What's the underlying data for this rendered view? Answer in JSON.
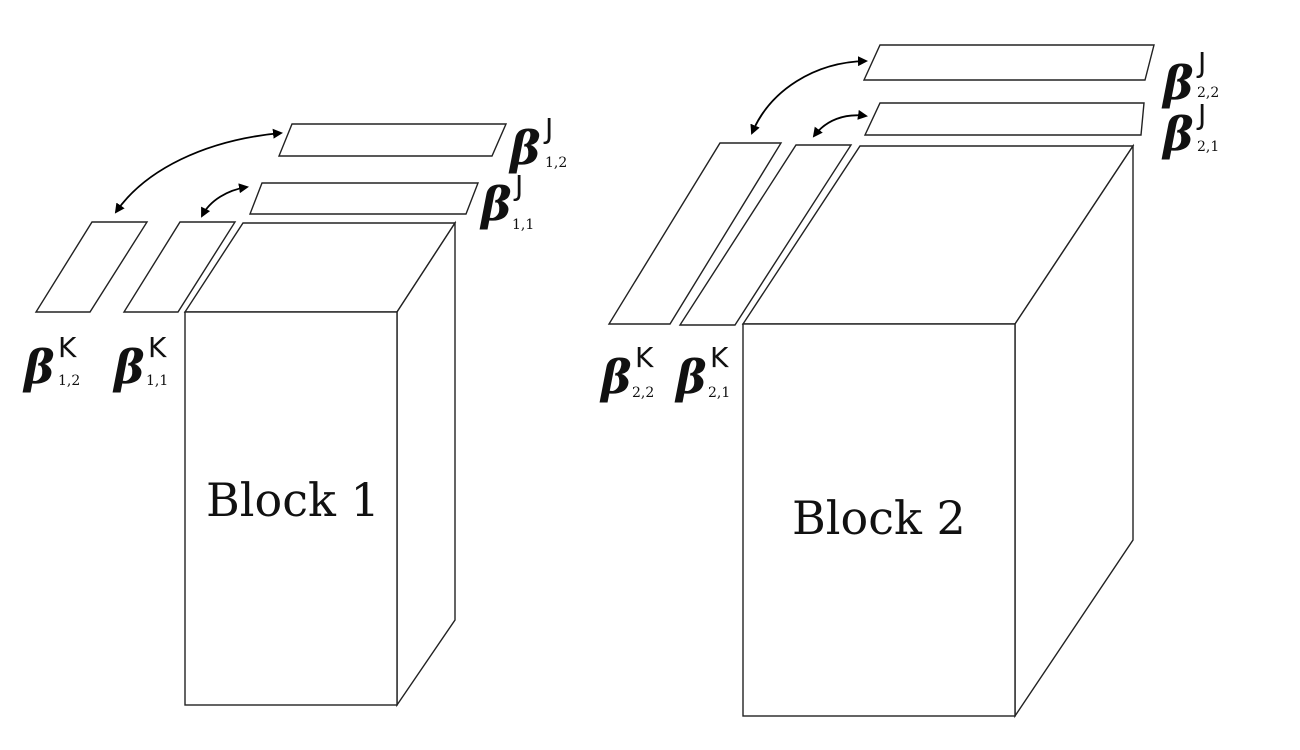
{
  "blocks": [
    {
      "label": "Block 1",
      "beta_j": [
        {
          "symbol": "β",
          "sup": "J",
          "sub": "1,2"
        },
        {
          "symbol": "β",
          "sup": "J",
          "sub": "1,1"
        }
      ],
      "beta_k": [
        {
          "symbol": "β",
          "sup": "K",
          "sub": "1,2"
        },
        {
          "symbol": "β",
          "sup": "K",
          "sub": "1,1"
        }
      ]
    },
    {
      "label": "Block 2",
      "beta_j": [
        {
          "symbol": "β",
          "sup": "J",
          "sub": "2,2"
        },
        {
          "symbol": "β",
          "sup": "J",
          "sub": "2,1"
        }
      ],
      "beta_k": [
        {
          "symbol": "β",
          "sup": "K",
          "sub": "2,2"
        },
        {
          "symbol": "β",
          "sup": "K",
          "sub": "2,1"
        }
      ]
    }
  ]
}
